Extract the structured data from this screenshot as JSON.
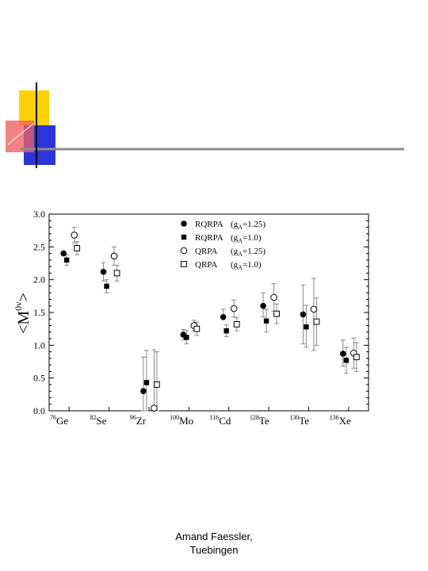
{
  "footer": {
    "line1": "Amand Faessler,",
    "line2": "Tuebingen"
  },
  "colors": {
    "deco_yellow": "#FFD200",
    "deco_red": "#F06060",
    "deco_blue": "#2B35D8",
    "deco_line": "#8C8C8C",
    "error_bar": "#888888"
  },
  "chart_data": {
    "type": "scatter",
    "ylabel_main": "<M",
    "ylabel_sup": "0ν",
    "ylabel_end": ">",
    "ylim": [
      0.0,
      3.0
    ],
    "yticks": [
      "0.0",
      "0.5",
      "1.0",
      "1.5",
      "2.0",
      "2.5",
      "3.0"
    ],
    "categories": [
      {
        "mass": "76",
        "el": "Ge"
      },
      {
        "mass": "82",
        "el": "Se"
      },
      {
        "mass": "96",
        "el": "Zr"
      },
      {
        "mass": "100",
        "el": "Mo"
      },
      {
        "mass": "116",
        "el": "Cd"
      },
      {
        "mass": "128",
        "el": "Te"
      },
      {
        "mass": "130",
        "el": "Te"
      },
      {
        "mass": "136",
        "el": "Xe"
      }
    ],
    "legend_position": "top",
    "series": [
      {
        "method": "RQRPA",
        "ga": "1.25",
        "marker": "filled-circle",
        "values": [
          2.4,
          2.12,
          0.3,
          1.16,
          1.43,
          1.6,
          1.47,
          0.87
        ],
        "err_low": [
          2.4,
          1.98,
          0.0,
          1.08,
          1.43,
          1.43,
          1.02,
          0.68
        ],
        "err_high": [
          2.4,
          2.26,
          0.82,
          1.24,
          1.55,
          1.8,
          1.92,
          1.08
        ]
      },
      {
        "method": "RQRPA",
        "ga": "1.0",
        "marker": "filled-square",
        "values": [
          2.3,
          1.9,
          0.43,
          1.12,
          1.22,
          1.37,
          1.28,
          0.77
        ],
        "err_low": [
          2.22,
          1.8,
          0.0,
          1.02,
          1.13,
          1.2,
          0.97,
          0.57
        ],
        "err_high": [
          2.38,
          2.0,
          0.92,
          1.22,
          1.31,
          1.55,
          1.61,
          0.97
        ]
      },
      {
        "method": "QRPA",
        "ga": "1.25",
        "marker": "open-circle",
        "values": [
          2.68,
          2.36,
          0.04,
          1.3,
          1.56,
          1.73,
          1.55,
          0.88
        ],
        "err_low": [
          2.56,
          2.22,
          0.0,
          1.22,
          1.43,
          1.52,
          0.92,
          0.65
        ],
        "err_high": [
          2.8,
          2.5,
          0.93,
          1.38,
          1.69,
          1.94,
          2.02,
          1.11
        ]
      },
      {
        "method": "QRPA",
        "ga": "1.0",
        "marker": "open-square",
        "values": [
          2.48,
          2.1,
          0.4,
          1.25,
          1.32,
          1.48,
          1.36,
          0.82
        ],
        "err_low": [
          2.38,
          1.98,
          0.0,
          1.15,
          1.22,
          1.33,
          1.0,
          0.6
        ],
        "err_high": [
          2.58,
          2.22,
          0.9,
          1.35,
          1.42,
          1.63,
          1.72,
          1.04
        ]
      }
    ]
  }
}
